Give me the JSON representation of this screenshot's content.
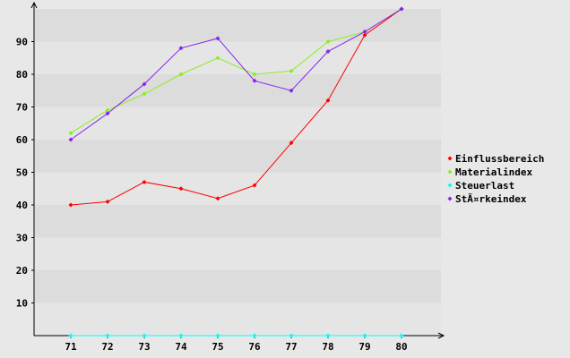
{
  "chart_data": {
    "type": "line",
    "title": "",
    "xlabel": "",
    "ylabel": "",
    "x": [
      "71",
      "72",
      "73",
      "74",
      "75",
      "76",
      "77",
      "78",
      "79",
      "80"
    ],
    "ylim": [
      0,
      100
    ],
    "yticks": [
      10,
      20,
      30,
      40,
      50,
      60,
      70,
      80,
      90
    ],
    "grid": "horizontal bands",
    "legend_position": "right",
    "series": [
      {
        "name": "Einflussbereich",
        "color": "#ff0000",
        "values": [
          40,
          41,
          47,
          45,
          42,
          46,
          59,
          72,
          92,
          100
        ]
      },
      {
        "name": "Materialindex",
        "color": "#88ee22",
        "values": [
          62,
          69,
          74,
          80,
          85,
          80,
          81,
          90,
          93,
          100
        ]
      },
      {
        "name": "Steuerlast",
        "color": "#00ffff",
        "values": [
          0,
          0,
          0,
          0,
          0,
          0,
          0,
          0,
          0,
          0
        ]
      },
      {
        "name": "StÃ¤rkeindex",
        "color": "#8822ee",
        "values": [
          60,
          68,
          77,
          88,
          91,
          78,
          75,
          87,
          93,
          100
        ]
      }
    ]
  }
}
